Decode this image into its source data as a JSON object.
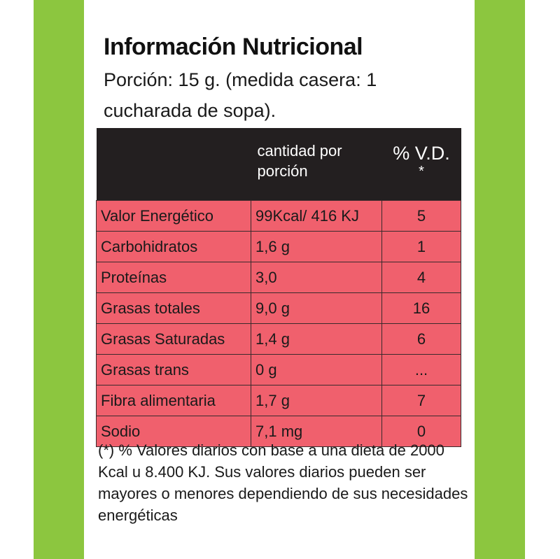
{
  "colors": {
    "border_green": "#8cc63f",
    "header_bg": "#231f20",
    "row_bg": "#f0606d"
  },
  "label": {
    "title": "Información Nutricional",
    "portion": "Porción: 15 g. (medida casera: 1 cucharada de sopa).",
    "header": {
      "col1": "",
      "col2": "cantidad por porción",
      "col3": "% V.D.",
      "col3_mark": "*"
    },
    "rows": [
      {
        "name": "Valor Energético",
        "amount": "99Kcal/ 416 KJ",
        "vd": "5"
      },
      {
        "name": "Carbohidratos",
        "amount": "1,6 g",
        "vd": "1"
      },
      {
        "name": "Proteínas",
        "amount": "3,0",
        "vd": "4"
      },
      {
        "name": "Grasas totales",
        "amount": "9,0 g",
        "vd": "16"
      },
      {
        "name": "Grasas Saturadas",
        "amount": "1,4 g",
        "vd": "6"
      },
      {
        "name": "Grasas trans",
        "amount": "0 g",
        "vd": "..."
      },
      {
        "name": "Fibra alimentaria",
        "amount": "1,7 g",
        "vd": "7"
      },
      {
        "name": "Sodio",
        "amount": "7,1 mg",
        "vd": "0"
      }
    ],
    "footnote": "(*) % Valores diarios con base a una dieta de 2000 Kcal u 8.400 KJ. Sus valores diarios pueden ser mayores o menores dependiendo de sus necesidades energéticas"
  }
}
